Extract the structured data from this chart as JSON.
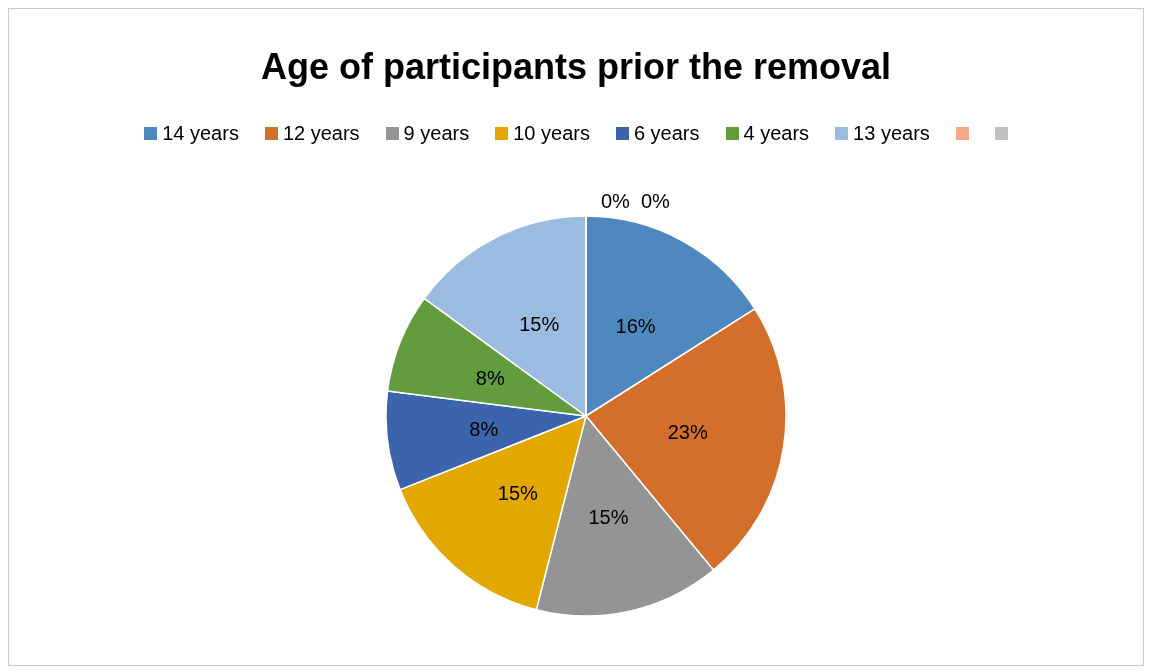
{
  "chart_data": {
    "type": "pie",
    "title": "Age of participants prior the removal",
    "categories": [
      "14 years",
      "12 years",
      "9 years",
      "10 years",
      "6 years",
      "4 years",
      "13 years",
      null,
      null
    ],
    "values": [
      16,
      23,
      15,
      15,
      8,
      8,
      15,
      0,
      0
    ],
    "value_labels": [
      "16%",
      "23%",
      "15%",
      "15%",
      "8%",
      "8%",
      "15%",
      "0%",
      "0%"
    ],
    "colors": [
      "#4f88bf",
      "#d46e2b",
      "#949494",
      "#e2a800",
      "#3b64ad",
      "#629c3c",
      "#9bbbe0",
      "#f4a988",
      "#c0c0c0"
    ],
    "legend": "top"
  }
}
